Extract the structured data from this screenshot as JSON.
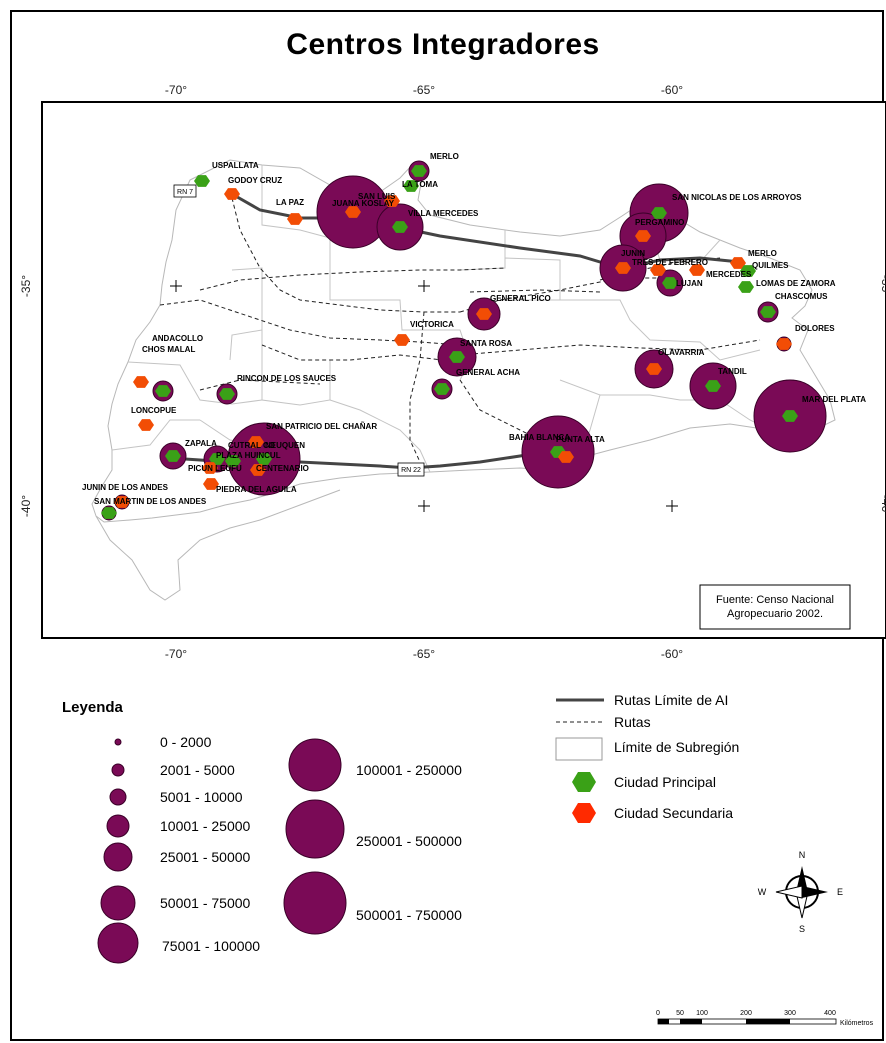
{
  "title": "Centros Integradores",
  "axes": {
    "lon_ticks": [
      "-70°",
      "-65°",
      "-60°"
    ],
    "lat_ticks": [
      "-35°",
      "-40°"
    ]
  },
  "source_note": [
    "Fuente: Censo Nacional",
    "Agropecuario 2002."
  ],
  "road_labels": [
    "RN 7",
    "RN 22"
  ],
  "colors": {
    "population_circle": "#7a0a56",
    "principal_city": "#3aa117",
    "secondary_city": "#f24d05",
    "secondary_city_alt": "#ff2a00"
  },
  "cities": [
    {
      "name": "USPALLATA",
      "type": "principal",
      "size_class": 0
    },
    {
      "name": "GODOY CRUZ",
      "type": "secondary",
      "size_class": 10
    },
    {
      "name": "MERLO",
      "type": "principal",
      "size_class": 3
    },
    {
      "name": "LA TOMA",
      "type": "principal",
      "size_class": 0
    },
    {
      "name": "SAN LUIS",
      "type": "secondary",
      "size_class": 0
    },
    {
      "name": "LA PAZ",
      "type": "secondary",
      "size_class": 0
    },
    {
      "name": "JUANA KOSLAY",
      "type": "secondary",
      "size_class": 9
    },
    {
      "name": "VILLA MERCEDES",
      "type": "principal",
      "size_class": 7
    },
    {
      "name": "SAN NICOLAS DE LOS ARROYOS",
      "type": "principal",
      "size_class": 8
    },
    {
      "name": "PERGAMINO",
      "type": "secondary",
      "size_class": 7
    },
    {
      "name": "JUNIN",
      "type": "secondary",
      "size_class": 7
    },
    {
      "name": "TRES DE FEBRERO",
      "type": "secondary",
      "size_class": 0
    },
    {
      "name": "MERLO",
      "type": "secondary",
      "size_class": 10
    },
    {
      "name": "QUILMES",
      "type": "principal",
      "size_class": 10
    },
    {
      "name": "MERCEDES",
      "type": "secondary",
      "size_class": 0
    },
    {
      "name": "LUJAN",
      "type": "principal",
      "size_class": 4
    },
    {
      "name": "LOMAS DE ZAMORA",
      "type": "principal",
      "size_class": 0
    },
    {
      "name": "CHASCOMUS",
      "type": "principal",
      "size_class": 3
    },
    {
      "name": "DOLORES",
      "type": "secondary",
      "size_class": 2
    },
    {
      "name": "GENERAL PICO",
      "type": "secondary",
      "size_class": 5
    },
    {
      "name": "VICTORICA",
      "type": "secondary",
      "size_class": 0
    },
    {
      "name": "SANTA ROSA",
      "type": "principal",
      "size_class": 6
    },
    {
      "name": "GENERAL ACHA",
      "type": "principal",
      "size_class": 3
    },
    {
      "name": "OLAVARRIA",
      "type": "secondary",
      "size_class": 6
    },
    {
      "name": "TANDIL",
      "type": "principal",
      "size_class": 7
    },
    {
      "name": "MAR DEL PLATA",
      "type": "principal",
      "size_class": 9
    },
    {
      "name": "ANDACOLLO",
      "type": "secondary",
      "size_class": 0
    },
    {
      "name": "CHOS MALAL",
      "type": "principal",
      "size_class": 3
    },
    {
      "name": "RINCON DE LOS SAUCES",
      "type": "principal",
      "size_class": 3
    },
    {
      "name": "LONCOPUE",
      "type": "secondary",
      "size_class": 0
    },
    {
      "name": "SAN PATRICIO DEL CHAÑAR",
      "type": "secondary",
      "size_class": 0
    },
    {
      "name": "ZAPALA",
      "type": "principal",
      "size_class": 4
    },
    {
      "name": "CUTRAL CO",
      "type": "principal",
      "size_class": 4
    },
    {
      "name": "PLAZA HUINCUL",
      "type": "principal",
      "size_class": 0
    },
    {
      "name": "NEUQUEN",
      "type": "principal",
      "size_class": 9
    },
    {
      "name": "PICUN LEUFU",
      "type": "secondary",
      "size_class": 0
    },
    {
      "name": "CENTENARIO",
      "type": "secondary",
      "size_class": 0
    },
    {
      "name": "PIEDRA DEL AGUILA",
      "type": "secondary",
      "size_class": 0
    },
    {
      "name": "JUNIN DE LOS ANDES",
      "type": "secondary",
      "size_class": 2
    },
    {
      "name": "SAN MARTIN DE LOS ANDES",
      "type": "principal",
      "size_class": 2
    },
    {
      "name": "BAHIA BLANCA",
      "type": "principal",
      "size_class": 9
    },
    {
      "name": "PUNTA ALTA",
      "type": "secondary",
      "size_class": 0
    }
  ],
  "legend": {
    "title": "Leyenda",
    "population_classes": [
      "0 - 2000",
      "2001 - 5000",
      "5001 - 10000",
      "10001 - 25000",
      "25001 - 50000",
      "50001 - 75000",
      "75001 - 100000",
      "100001 - 250000",
      "250001 - 500000",
      "500001 - 750000"
    ],
    "symbols": [
      {
        "label": "Rutas Límite de AI"
      },
      {
        "label": "Rutas"
      },
      {
        "label": "Límite de Subregión"
      },
      {
        "label": "Ciudad Principal"
      },
      {
        "label": "Ciudad Secundaria"
      }
    ]
  },
  "north_arrow": {
    "n": "N",
    "s": "S",
    "e": "E",
    "w": "W"
  },
  "scale_bar": {
    "ticks": [
      "0",
      "50",
      "100",
      "200",
      "300",
      "400"
    ],
    "unit": "Kilómetros"
  }
}
